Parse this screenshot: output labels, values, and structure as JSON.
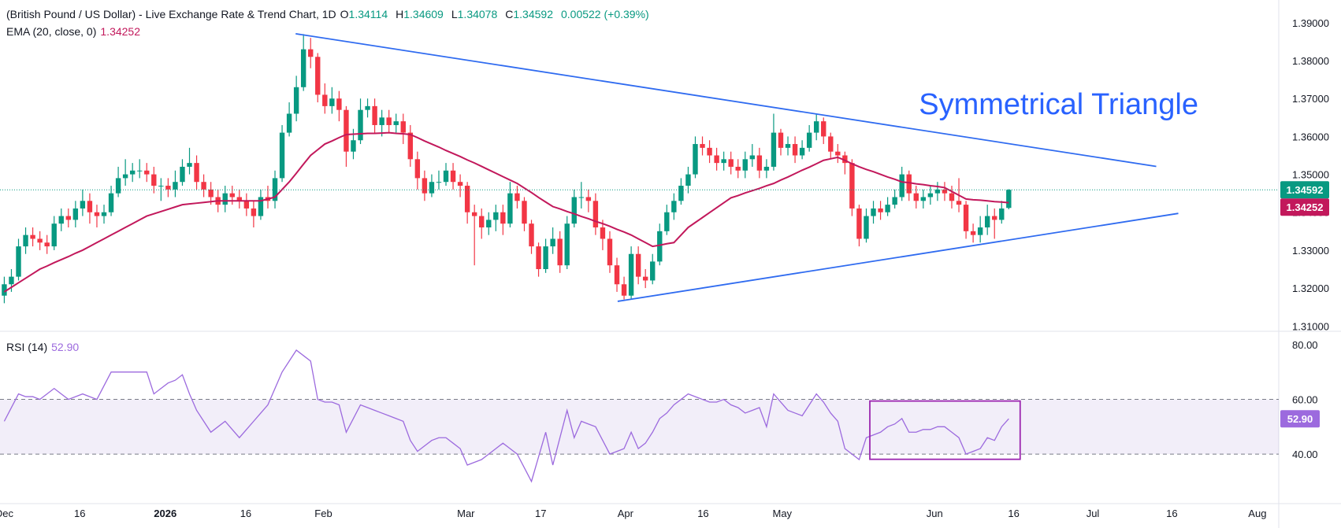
{
  "chart_data": [
    {
      "type": "candlestick",
      "title": "(British Pound / US Dollar) - Live Exchange Rate & Trend Chart, 1D",
      "ohlc_legend": [
        {
          "label": "O",
          "value": "1.34114"
        },
        {
          "label": "H",
          "value": "1.34609"
        },
        {
          "label": "L",
          "value": "1.34078"
        },
        {
          "label": "C",
          "value": "1.34592"
        }
      ],
      "change": "0.00522 (+0.39%)",
      "up_color": "#089981",
      "down_color": "#f23645",
      "xlim": [
        -0.6,
        178.9
      ],
      "xticks": [
        {
          "value": 0,
          "label": "Dec"
        },
        {
          "value": 10.6,
          "label": "16"
        },
        {
          "value": 22.6,
          "label": "2026"
        },
        {
          "value": 33.9,
          "label": "16"
        },
        {
          "value": 44.8,
          "label": "Feb"
        },
        {
          "value": 64.8,
          "label": "Mar"
        },
        {
          "value": 75.3,
          "label": "17"
        },
        {
          "value": 87.2,
          "label": "Apr"
        },
        {
          "value": 98.1,
          "label": "16"
        },
        {
          "value": 109.2,
          "label": "May"
        },
        {
          "value": 130.6,
          "label": "Jun"
        },
        {
          "value": 141.7,
          "label": "16"
        },
        {
          "value": 152.8,
          "label": "Jul"
        },
        {
          "value": 163.9,
          "label": "16"
        },
        {
          "value": 175.9,
          "label": "Aug"
        }
      ],
      "ylim": [
        1.3086,
        1.396
      ],
      "yticks": [
        {
          "value": 1.31,
          "label": "1.31000"
        },
        {
          "value": 1.32,
          "label": "1.32000"
        },
        {
          "value": 1.33,
          "label": "1.33000"
        },
        {
          "value": 1.34,
          "label": "1.34000"
        },
        {
          "value": 1.35,
          "label": "1.35000"
        },
        {
          "value": 1.36,
          "label": "1.36000"
        },
        {
          "value": 1.37,
          "label": "1.37000"
        },
        {
          "value": 1.38,
          "label": "1.38000"
        },
        {
          "value": 1.39,
          "label": "1.39000"
        }
      ],
      "open": [
        1.318,
        1.321,
        1.323,
        1.331,
        1.334,
        1.333,
        1.332,
        1.331,
        1.337,
        1.339,
        1.338,
        1.341,
        1.343,
        1.34,
        1.339,
        1.34,
        1.345,
        1.349,
        1.35,
        1.351,
        1.351,
        1.35,
        1.347,
        1.347,
        1.346,
        1.348,
        1.352,
        1.353,
        1.348,
        1.346,
        1.344,
        1.342,
        1.345,
        1.344,
        1.343,
        1.341,
        1.339,
        1.344,
        1.343,
        1.349,
        1.361,
        1.366,
        1.373,
        1.383,
        1.381,
        1.371,
        1.368,
        1.37,
        1.367,
        1.356,
        1.359,
        1.367,
        1.368,
        1.363,
        1.365,
        1.363,
        1.364,
        1.361,
        1.354,
        1.349,
        1.345,
        1.348,
        1.348,
        1.351,
        1.348,
        1.347,
        1.34,
        1.339,
        1.336,
        1.338,
        1.34,
        1.337,
        1.345,
        1.343,
        1.337,
        1.331,
        1.325,
        1.331,
        1.333,
        1.326,
        1.337,
        1.344,
        1.344,
        1.343,
        1.336,
        1.333,
        1.326,
        1.321,
        1.318,
        1.329,
        1.323,
        1.322,
        1.327,
        1.335,
        1.34,
        1.343,
        1.347,
        1.35,
        1.358,
        1.357,
        1.355,
        1.353,
        1.354,
        1.352,
        1.351,
        1.354,
        1.355,
        1.351,
        1.352,
        1.361,
        1.357,
        1.358,
        1.355,
        1.357,
        1.361,
        1.364,
        1.36,
        1.356,
        1.355,
        1.353,
        1.341,
        1.333,
        1.339,
        1.341,
        1.34,
        1.342,
        1.344,
        1.35,
        1.345,
        1.343,
        1.344,
        1.345,
        1.346,
        1.345,
        1.343,
        1.342,
        1.335,
        1.334,
        1.336,
        1.339,
        1.338,
        1.34114
      ],
      "high": [
        1.323,
        1.325,
        1.333,
        1.336,
        1.336,
        1.335,
        1.334,
        1.339,
        1.341,
        1.341,
        1.343,
        1.346,
        1.345,
        1.342,
        1.342,
        1.347,
        1.352,
        1.354,
        1.353,
        1.354,
        1.353,
        1.352,
        1.349,
        1.349,
        1.351,
        1.354,
        1.357,
        1.355,
        1.35,
        1.348,
        1.346,
        1.347,
        1.347,
        1.346,
        1.345,
        1.343,
        1.346,
        1.347,
        1.351,
        1.363,
        1.369,
        1.376,
        1.387,
        1.386,
        1.382,
        1.374,
        1.373,
        1.372,
        1.368,
        1.362,
        1.37,
        1.37,
        1.37,
        1.367,
        1.367,
        1.366,
        1.366,
        1.363,
        1.356,
        1.351,
        1.35,
        1.351,
        1.353,
        1.353,
        1.35,
        1.348,
        1.342,
        1.341,
        1.34,
        1.342,
        1.342,
        1.348,
        1.347,
        1.344,
        1.338,
        1.332,
        1.333,
        1.336,
        1.335,
        1.339,
        1.346,
        1.348,
        1.346,
        1.345,
        1.338,
        1.335,
        1.328,
        1.323,
        1.331,
        1.331,
        1.325,
        1.329,
        1.337,
        1.342,
        1.345,
        1.349,
        1.352,
        1.36,
        1.36,
        1.359,
        1.357,
        1.356,
        1.356,
        1.354,
        1.356,
        1.358,
        1.357,
        1.354,
        1.366,
        1.362,
        1.36,
        1.36,
        1.359,
        1.363,
        1.366,
        1.365,
        1.361,
        1.358,
        1.356,
        1.354,
        1.342,
        1.341,
        1.343,
        1.343,
        1.344,
        1.346,
        1.352,
        1.351,
        1.347,
        1.346,
        1.347,
        1.348,
        1.348,
        1.347,
        1.349,
        1.343,
        1.337,
        1.339,
        1.342,
        1.341,
        1.343,
        1.34609
      ],
      "low": [
        1.316,
        1.319,
        1.322,
        1.329,
        1.331,
        1.33,
        1.329,
        1.33,
        1.335,
        1.336,
        1.336,
        1.339,
        1.337,
        1.336,
        1.337,
        1.339,
        1.344,
        1.347,
        1.348,
        1.349,
        1.348,
        1.345,
        1.343,
        1.344,
        1.344,
        1.347,
        1.35,
        1.346,
        1.344,
        1.342,
        1.34,
        1.34,
        1.342,
        1.341,
        1.339,
        1.336,
        1.338,
        1.341,
        1.341,
        1.348,
        1.36,
        1.364,
        1.372,
        1.378,
        1.369,
        1.366,
        1.366,
        1.364,
        1.352,
        1.354,
        1.358,
        1.365,
        1.361,
        1.36,
        1.361,
        1.361,
        1.358,
        1.352,
        1.346,
        1.343,
        1.344,
        1.346,
        1.347,
        1.346,
        1.344,
        1.337,
        1.326,
        1.333,
        1.334,
        1.335,
        1.334,
        1.336,
        1.341,
        1.335,
        1.329,
        1.323,
        1.324,
        1.329,
        1.324,
        1.325,
        1.336,
        1.341,
        1.34,
        1.334,
        1.33,
        1.324,
        1.319,
        1.317,
        1.317,
        1.321,
        1.32,
        1.321,
        1.326,
        1.334,
        1.338,
        1.342,
        1.345,
        1.349,
        1.355,
        1.353,
        1.351,
        1.351,
        1.35,
        1.349,
        1.349,
        1.352,
        1.349,
        1.349,
        1.351,
        1.355,
        1.355,
        1.353,
        1.354,
        1.356,
        1.359,
        1.358,
        1.354,
        1.353,
        1.35,
        1.339,
        1.331,
        1.332,
        1.337,
        1.338,
        1.339,
        1.341,
        1.343,
        1.343,
        1.341,
        1.341,
        1.342,
        1.343,
        1.343,
        1.341,
        1.34,
        1.333,
        1.332,
        1.332,
        1.334,
        1.333,
        1.337,
        1.34078
      ],
      "close": [
        1.321,
        1.323,
        1.331,
        1.334,
        1.333,
        1.332,
        1.331,
        1.337,
        1.339,
        1.338,
        1.341,
        1.343,
        1.34,
        1.339,
        1.34,
        1.345,
        1.349,
        1.35,
        1.351,
        1.351,
        1.35,
        1.347,
        1.347,
        1.346,
        1.348,
        1.352,
        1.353,
        1.348,
        1.346,
        1.344,
        1.342,
        1.345,
        1.344,
        1.343,
        1.341,
        1.339,
        1.344,
        1.343,
        1.349,
        1.361,
        1.366,
        1.373,
        1.383,
        1.381,
        1.371,
        1.368,
        1.37,
        1.367,
        1.356,
        1.359,
        1.367,
        1.368,
        1.363,
        1.365,
        1.363,
        1.364,
        1.361,
        1.354,
        1.349,
        1.345,
        1.348,
        1.348,
        1.351,
        1.348,
        1.347,
        1.34,
        1.339,
        1.336,
        1.338,
        1.34,
        1.337,
        1.345,
        1.343,
        1.337,
        1.331,
        1.325,
        1.331,
        1.333,
        1.326,
        1.337,
        1.344,
        1.344,
        1.343,
        1.336,
        1.333,
        1.326,
        1.321,
        1.318,
        1.329,
        1.323,
        1.322,
        1.327,
        1.335,
        1.34,
        1.343,
        1.347,
        1.35,
        1.358,
        1.357,
        1.355,
        1.353,
        1.354,
        1.352,
        1.351,
        1.354,
        1.355,
        1.351,
        1.352,
        1.361,
        1.357,
        1.358,
        1.355,
        1.357,
        1.361,
        1.364,
        1.36,
        1.356,
        1.355,
        1.353,
        1.341,
        1.333,
        1.339,
        1.341,
        1.34,
        1.342,
        1.344,
        1.35,
        1.345,
        1.343,
        1.344,
        1.345,
        1.346,
        1.345,
        1.343,
        1.342,
        1.335,
        1.334,
        1.336,
        1.339,
        1.338,
        1.341,
        1.34592
      ],
      "series": [
        {
          "name": "EMA (20, close, 0)",
          "value_label": "1.34252",
          "color": "#c2185b",
          "values": [
            1.319,
            1.3202,
            1.3214,
            1.3226,
            1.3238,
            1.325,
            1.3258,
            1.3267,
            1.3275,
            1.3283,
            1.3292,
            1.33,
            1.331,
            1.332,
            1.333,
            1.334,
            1.335,
            1.336,
            1.337,
            1.338,
            1.339,
            1.3396,
            1.3402,
            1.3408,
            1.3414,
            1.342,
            1.3422,
            1.3424,
            1.3426,
            1.3428,
            1.343,
            1.343,
            1.343,
            1.343,
            1.343,
            1.343,
            1.343,
            1.3435,
            1.344,
            1.346,
            1.348,
            1.3503,
            1.3527,
            1.355,
            1.3565,
            1.358,
            1.3588,
            1.3597,
            1.3605,
            1.3606,
            1.3607,
            1.3608,
            1.3608,
            1.3609,
            1.361,
            1.3608,
            1.3607,
            1.3605,
            1.3597,
            1.3588,
            1.358,
            1.3572,
            1.3563,
            1.3555,
            1.3547,
            1.3538,
            1.353,
            1.3521,
            1.3512,
            1.3503,
            1.3494,
            1.3485,
            1.3476,
            1.3464,
            1.3452,
            1.3439,
            1.3427,
            1.3415,
            1.3409,
            1.3402,
            1.3396,
            1.3389,
            1.3383,
            1.3376,
            1.337,
            1.3363,
            1.3355,
            1.3348,
            1.334,
            1.333,
            1.332,
            1.331,
            1.3313,
            1.3317,
            1.332,
            1.334,
            1.336,
            1.3373,
            1.3386,
            1.3399,
            1.3412,
            1.3425,
            1.3438,
            1.3444,
            1.3451,
            1.3457,
            1.3463,
            1.347,
            1.3476,
            1.3485,
            1.3493,
            1.3502,
            1.3511,
            1.3519,
            1.3528,
            1.3537,
            1.3541,
            1.3545,
            1.3537,
            1.3528,
            1.352,
            1.3513,
            1.3507,
            1.35,
            1.3493,
            1.3487,
            1.348,
            1.3478,
            1.3475,
            1.3473,
            1.347,
            1.3468,
            1.3465,
            1.3455,
            1.3445,
            1.3435,
            1.3433,
            1.3432,
            1.343,
            1.3428,
            1.3427,
            1.34252
          ]
        }
      ],
      "trendlines": [
        {
          "x": [
            40.9,
            161.7
          ],
          "y": [
            1.3871,
            1.3521
          ],
          "color": "#2f6bf0"
        },
        {
          "x": [
            86.1,
            164.8
          ],
          "y": [
            1.3165,
            1.3397
          ],
          "color": "#2f6bf0"
        }
      ],
      "annotations": [
        {
          "text": "Symmetrical Triangle",
          "x": 148,
          "y": 1.3686,
          "color": "#2962ff"
        }
      ]
    },
    {
      "type": "line",
      "ylim": [
        21.9,
        84.9
      ],
      "yticks": [
        {
          "value": 80,
          "label": "80.00"
        },
        {
          "value": 60,
          "label": "60.00"
        },
        {
          "value": 40,
          "label": "40.00"
        }
      ],
      "band": [
        40,
        60
      ],
      "band_color": "#7e57c2",
      "series": [
        {
          "name": "RSI (14)",
          "value_label": "52.90",
          "color": "#9c6ade",
          "values": [
            52,
            57,
            62,
            61,
            61,
            60,
            62,
            64,
            62,
            60,
            61,
            62,
            61,
            60,
            65,
            70,
            70,
            70,
            70,
            70,
            70,
            62,
            64,
            66,
            67,
            69,
            62,
            56,
            52,
            48,
            50,
            52,
            49,
            46,
            49,
            52,
            55,
            58,
            64,
            70,
            74,
            78,
            76,
            74,
            60,
            59,
            59,
            58,
            48,
            53,
            58,
            57,
            56,
            55,
            54,
            53,
            52,
            45,
            41,
            43,
            45,
            46,
            46,
            44,
            42,
            36,
            37,
            38,
            40,
            42,
            44,
            42,
            40,
            35,
            30,
            39,
            48,
            36,
            46,
            56,
            46,
            52,
            51,
            50,
            45,
            40,
            41,
            42,
            48,
            42,
            44,
            48,
            53,
            55,
            58,
            60,
            62,
            61,
            60,
            59,
            59,
            60,
            58,
            57,
            55,
            56,
            57,
            50,
            62,
            59,
            56,
            55,
            54,
            58,
            62,
            59,
            55,
            52,
            42,
            40,
            38,
            46,
            47,
            48,
            50,
            51,
            53,
            48,
            48,
            49,
            49,
            50,
            50,
            48,
            46,
            40,
            41,
            42,
            46,
            45,
            50,
            52.9
          ]
        }
      ],
      "highlight_box": {
        "x": [
          121.5,
          142.6
        ],
        "y": [
          59.4,
          38.1
        ],
        "color": "#9c27b0"
      }
    }
  ]
}
